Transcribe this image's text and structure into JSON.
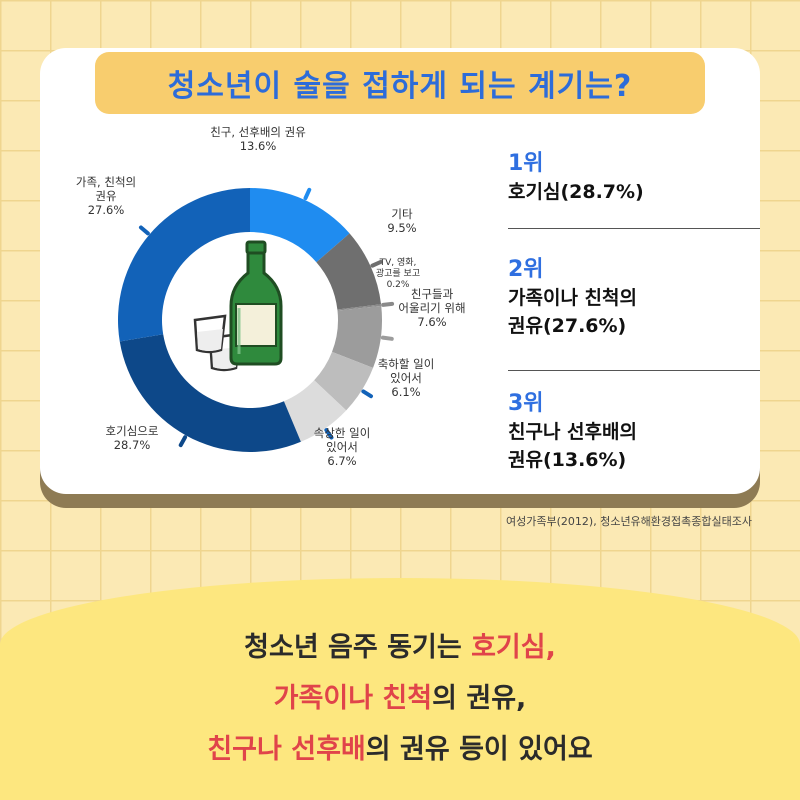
{
  "title": "청소년이 술을 접하게 되는 계기는?",
  "chart_data": {
    "type": "pie",
    "variant": "donut",
    "start_angle_deg": 0,
    "slices": [
      {
        "label_lines": [
          "친구, 선후배의 권유"
        ],
        "value": 13.6,
        "value_text": "13.6%",
        "color": "#1f8cf0"
      },
      {
        "label_lines": [
          "기타"
        ],
        "value": 9.5,
        "value_text": "9.5%",
        "color": "#6f6f6f"
      },
      {
        "label_lines": [
          "TV, 영화,",
          "광고를 보고"
        ],
        "value": 0.2,
        "value_text": "0.2%",
        "color": "#8a8a8a"
      },
      {
        "label_lines": [
          "친구들과",
          "어울리기 위해"
        ],
        "value": 7.6,
        "value_text": "7.6%",
        "color": "#9c9c9c"
      },
      {
        "label_lines": [
          "축하할 일이",
          "있어서"
        ],
        "value": 6.1,
        "value_text": "6.1%",
        "color": "#bdbdbd"
      },
      {
        "label_lines": [
          "속상한 일이",
          "있어서"
        ],
        "value": 6.7,
        "value_text": "6.7%",
        "color": "#dcdcdc"
      },
      {
        "label_lines": [
          "호기심으로"
        ],
        "value": 28.7,
        "value_text": "28.7%",
        "color": "#0d4889"
      },
      {
        "label_lines": [
          "가족, 친척의",
          "권유"
        ],
        "value": 27.6,
        "value_text": "27.6%",
        "color": "#1262b8"
      }
    ]
  },
  "ranks": [
    {
      "rank": "1위",
      "lines": [
        "호기심(28.7%)"
      ]
    },
    {
      "rank": "2위",
      "lines": [
        "가족이나 친척의",
        "권유(27.6%)"
      ]
    },
    {
      "rank": "3위",
      "lines": [
        "친구나 선후배의",
        "권유(13.6%)"
      ]
    }
  ],
  "source": "여성가족부(2012), 청소년유해환경접촉종합실태조사",
  "bottom": {
    "l1a": "청소년 음주 동기는 ",
    "l1b": "호기심,",
    "l2a": "가족이나 친척",
    "l2b": "의 권유,",
    "l3a": "친구나 선후배",
    "l3b": "의 권유 등이 있어요"
  },
  "colors": {
    "background": "#fbe9b4",
    "title_pill": "#f8cd6e",
    "title_text": "#2d6cd9",
    "rank_blue": "#2f6fe0",
    "highlight_red": "#e0444a",
    "bottom_band": "#fde77f"
  },
  "icons": [
    "soju-bottle-icon",
    "soju-glass-icon"
  ]
}
